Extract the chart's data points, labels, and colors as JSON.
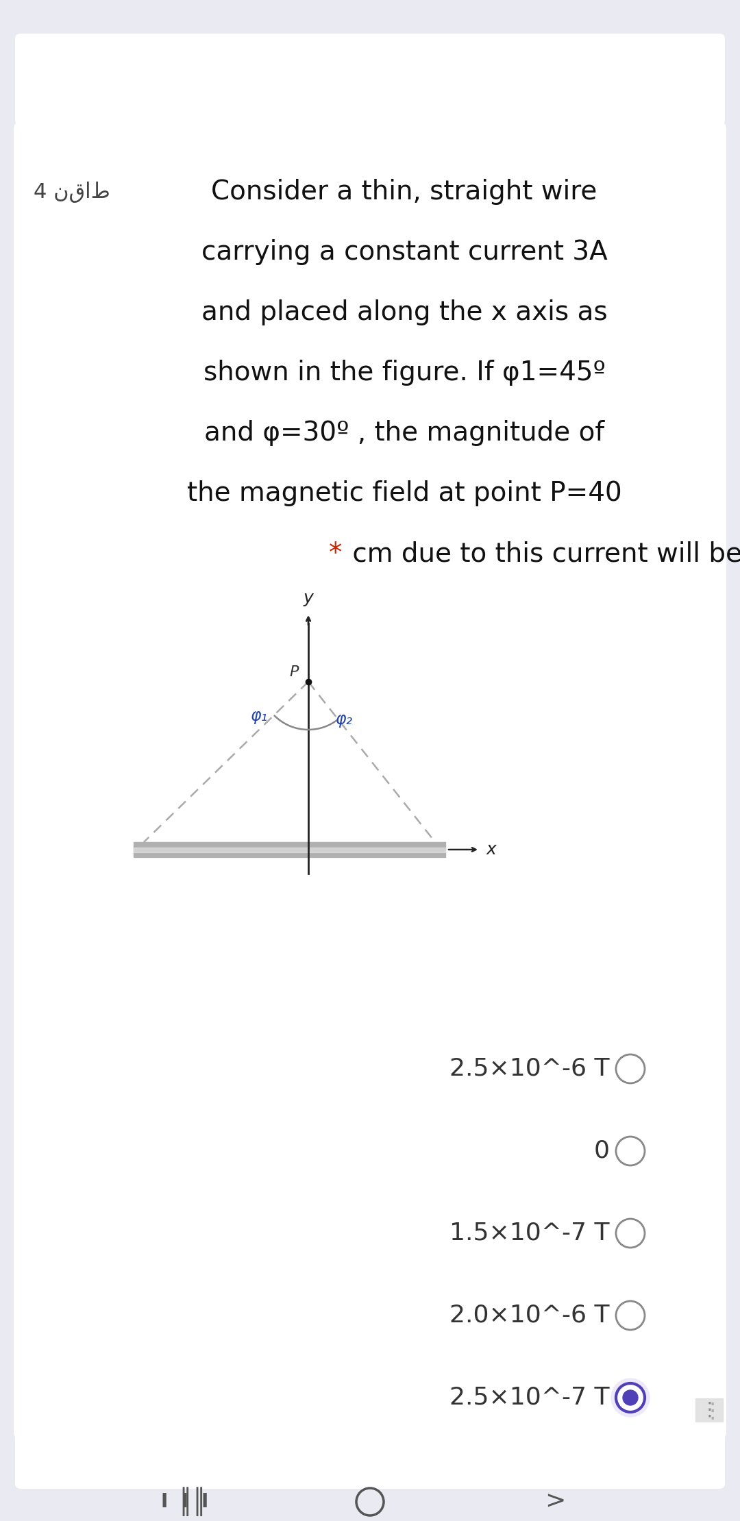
{
  "bg_color": "#eaeaf2",
  "card_color": "#ffffff",
  "title_points": "4 نقاط",
  "question_line1": "Consider a thin, straight wire",
  "question_line2": "carrying a constant current 3A",
  "question_line3": "and placed along the x axis as",
  "question_line4": "shown in the figure. If φ1=45º",
  "question_line5": "and φ=30º , the magnitude of",
  "question_line6": "the magnetic field at point P=40",
  "question_line7_red": "*",
  "question_line7_black": " cm due to this current will be",
  "options": [
    {
      "text": "2.5×10^-6 T",
      "selected": false
    },
    {
      "text": "0",
      "selected": false
    },
    {
      "text": "1.5×10^-7 T",
      "selected": false
    },
    {
      "text": "2.0×10^-6 T",
      "selected": false
    },
    {
      "text": "2.5×10^-7 T",
      "selected": true
    }
  ],
  "option_text_color": "#333333",
  "radio_color_unselected": "#888888",
  "radio_color_selected_outer": "#5040b8",
  "radio_color_selected_inner": "#5040b8",
  "radio_bg_selected": "#ede9fb",
  "text_fontsize": 28,
  "points_fontsize": 22,
  "option_fontsize": 26,
  "wire_color": "#b0b0b0",
  "wire_highlight": "#e0e0e0",
  "axis_color": "#222222",
  "dashed_color": "#aaaaaa",
  "angle_arc_color": "#888888",
  "label_color": "#333333",
  "phi_color": "#2244aa"
}
